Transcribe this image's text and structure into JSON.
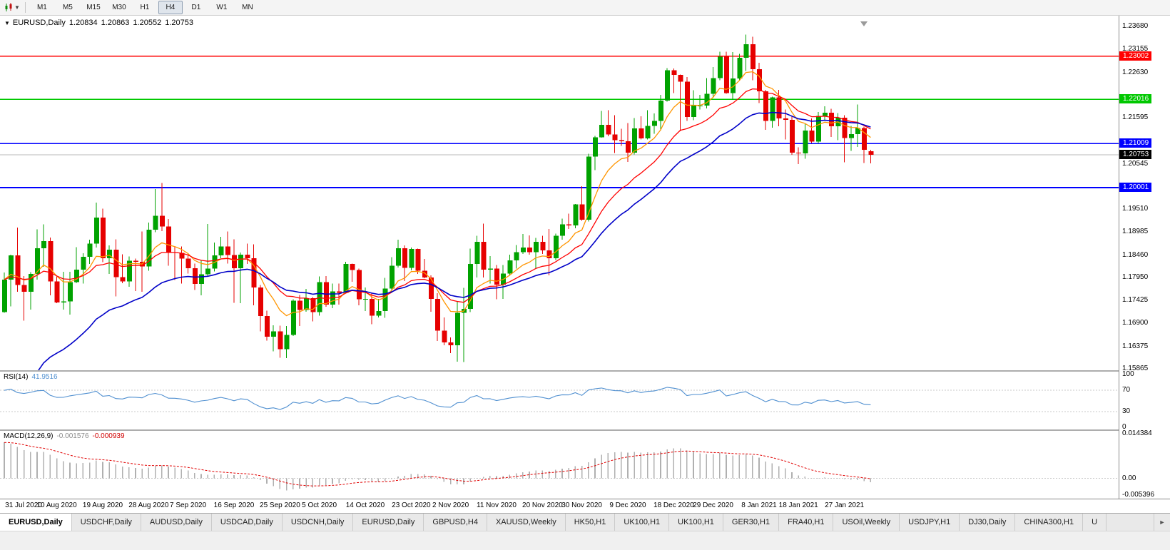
{
  "toolbar": {
    "timeframes": [
      "M1",
      "M5",
      "M15",
      "M30",
      "H1",
      "H4",
      "D1",
      "W1",
      "MN"
    ],
    "active_timeframe": "H4"
  },
  "chart_header": {
    "marker_icon": "▼",
    "symbol": "EURUSD,Daily",
    "open": "1.20834",
    "high": "1.20863",
    "low": "1.20552",
    "close": "1.20753"
  },
  "chart_data": {
    "type": "candlestick",
    "title": "EURUSD,Daily",
    "symbol": "EURUSD",
    "timeframe": "Daily",
    "ylim": [
      1.1583,
      1.2392
    ],
    "up_color": "#00a200",
    "down_color": "#e60000",
    "y_ticks": [
      "1.23680",
      "1.23155",
      "1.22630",
      "1.21595",
      "1.20545",
      "1.19510",
      "1.18985",
      "1.18460",
      "1.17950",
      "1.17425",
      "1.16900",
      "1.16375",
      "1.15865"
    ],
    "x_ticks": [
      {
        "label": "31 Jul 2020",
        "i": 2
      },
      {
        "label": "10 Aug 2020",
        "i": 8
      },
      {
        "label": "19 Aug 2020",
        "i": 15
      },
      {
        "label": "28 Aug 2020",
        "i": 22
      },
      {
        "label": "7 Sep 2020",
        "i": 28
      },
      {
        "label": "16 Sep 2020",
        "i": 35
      },
      {
        "label": "25 Sep 2020",
        "i": 42
      },
      {
        "label": "5 Oct 2020",
        "i": 48
      },
      {
        "label": "14 Oct 2020",
        "i": 55
      },
      {
        "label": "23 Oct 2020",
        "i": 62
      },
      {
        "label": "2 Nov 2020",
        "i": 68
      },
      {
        "label": "11 Nov 2020",
        "i": 75
      },
      {
        "label": "20 Nov 2020",
        "i": 82
      },
      {
        "label": "30 Nov 2020",
        "i": 88
      },
      {
        "label": "9 Dec 2020",
        "i": 95
      },
      {
        "label": "18 Dec 2020",
        "i": 102
      },
      {
        "label": "29 Dec 2020",
        "i": 108
      },
      {
        "label": "8 Jan 2021",
        "i": 115
      },
      {
        "label": "18 Jan 2021",
        "i": 121
      },
      {
        "label": "27 Jan 2021",
        "i": 128
      }
    ],
    "candles": [
      [
        1.1716,
        1.1806,
        1.1714,
        1.179
      ],
      [
        1.179,
        1.1847,
        1.1729,
        1.1845
      ],
      [
        1.1845,
        1.1909,
        1.1762,
        1.1778
      ],
      [
        1.1778,
        1.1798,
        1.1696,
        1.1762
      ],
      [
        1.1762,
        1.1807,
        1.1722,
        1.1803
      ],
      [
        1.1803,
        1.1905,
        1.179,
        1.1862
      ],
      [
        1.1862,
        1.1916,
        1.1819,
        1.1878
      ],
      [
        1.1878,
        1.1886,
        1.1754,
        1.1786
      ],
      [
        1.1786,
        1.1798,
        1.1736,
        1.1738
      ],
      [
        1.1738,
        1.1808,
        1.1722,
        1.174
      ],
      [
        1.174,
        1.1808,
        1.171,
        1.1784
      ],
      [
        1.1784,
        1.1864,
        1.1782,
        1.1813
      ],
      [
        1.1813,
        1.185,
        1.1781,
        1.1842
      ],
      [
        1.1842,
        1.1881,
        1.1826,
        1.1872
      ],
      [
        1.1872,
        1.1966,
        1.1863,
        1.1932
      ],
      [
        1.1932,
        1.1952,
        1.183,
        1.1839
      ],
      [
        1.1839,
        1.1868,
        1.1803,
        1.1858
      ],
      [
        1.1858,
        1.1882,
        1.1752,
        1.1796
      ],
      [
        1.1796,
        1.1848,
        1.1782,
        1.1786
      ],
      [
        1.1786,
        1.1843,
        1.1774,
        1.1833
      ],
      [
        1.1833,
        1.1838,
        1.1764,
        1.1831
      ],
      [
        1.1831,
        1.19,
        1.1762,
        1.182
      ],
      [
        1.182,
        1.192,
        1.181,
        1.1904
      ],
      [
        1.1904,
        1.1997,
        1.1898,
        1.1936
      ],
      [
        1.1936,
        1.2011,
        1.1901,
        1.1911
      ],
      [
        1.1911,
        1.1928,
        1.1822,
        1.1853
      ],
      [
        1.1853,
        1.1865,
        1.1789,
        1.1851
      ],
      [
        1.1851,
        1.1866,
        1.1781,
        1.1838
      ],
      [
        1.1838,
        1.1848,
        1.1804,
        1.1816
      ],
      [
        1.1816,
        1.1827,
        1.1766,
        1.178
      ],
      [
        1.178,
        1.1834,
        1.1754,
        1.1802
      ],
      [
        1.1802,
        1.1917,
        1.1799,
        1.1815
      ],
      [
        1.1815,
        1.1875,
        1.1809,
        1.1845
      ],
      [
        1.1845,
        1.1888,
        1.1839,
        1.1866
      ],
      [
        1.1866,
        1.19,
        1.1827,
        1.1846
      ],
      [
        1.1846,
        1.1882,
        1.1737,
        1.1816
      ],
      [
        1.1816,
        1.1852,
        1.1736,
        1.1847
      ],
      [
        1.1847,
        1.1872,
        1.1826,
        1.1839
      ],
      [
        1.1839,
        1.1871,
        1.1731,
        1.1772
      ],
      [
        1.1772,
        1.1778,
        1.1672,
        1.1707
      ],
      [
        1.1707,
        1.1719,
        1.1651,
        1.166
      ],
      [
        1.166,
        1.1686,
        1.1626,
        1.1672
      ],
      [
        1.1672,
        1.1685,
        1.1612,
        1.1631
      ],
      [
        1.1631,
        1.1684,
        1.1611,
        1.1664
      ],
      [
        1.1664,
        1.1745,
        1.1661,
        1.1742
      ],
      [
        1.1742,
        1.1755,
        1.1684,
        1.1721
      ],
      [
        1.1721,
        1.1769,
        1.1717,
        1.1748
      ],
      [
        1.1748,
        1.175,
        1.1695,
        1.1716
      ],
      [
        1.1716,
        1.1797,
        1.1708,
        1.1784
      ],
      [
        1.1784,
        1.1798,
        1.1728,
        1.1733
      ],
      [
        1.1733,
        1.1781,
        1.1725,
        1.1763
      ],
      [
        1.1763,
        1.1781,
        1.1733,
        1.176
      ],
      [
        1.176,
        1.1831,
        1.1758,
        1.1826
      ],
      [
        1.1826,
        1.1827,
        1.1785,
        1.1812
      ],
      [
        1.1812,
        1.1815,
        1.1731,
        1.1745
      ],
      [
        1.1745,
        1.1772,
        1.1718,
        1.1746
      ],
      [
        1.1746,
        1.1758,
        1.1688,
        1.1708
      ],
      [
        1.1708,
        1.1746,
        1.1704,
        1.1718
      ],
      [
        1.1718,
        1.1794,
        1.1703,
        1.177
      ],
      [
        1.177,
        1.1841,
        1.176,
        1.1822
      ],
      [
        1.1822,
        1.1881,
        1.1818,
        1.1862
      ],
      [
        1.1862,
        1.1868,
        1.1787,
        1.1817
      ],
      [
        1.1817,
        1.1863,
        1.1811,
        1.186
      ],
      [
        1.186,
        1.1861,
        1.1803,
        1.181
      ],
      [
        1.181,
        1.1837,
        1.1793,
        1.1795
      ],
      [
        1.1795,
        1.18,
        1.1717,
        1.1746
      ],
      [
        1.1746,
        1.1759,
        1.165,
        1.1674
      ],
      [
        1.1674,
        1.1704,
        1.164,
        1.1647
      ],
      [
        1.1647,
        1.1658,
        1.1622,
        1.164
      ],
      [
        1.164,
        1.174,
        1.1603,
        1.1714
      ],
      [
        1.1714,
        1.1771,
        1.1602,
        1.1723
      ],
      [
        1.1723,
        1.1861,
        1.1716,
        1.1826
      ],
      [
        1.1826,
        1.189,
        1.1795,
        1.1876
      ],
      [
        1.1876,
        1.1918,
        1.1795,
        1.1813
      ],
      [
        1.1813,
        1.1844,
        1.1781,
        1.1815
      ],
      [
        1.1815,
        1.1823,
        1.1745,
        1.1779
      ],
      [
        1.1779,
        1.1823,
        1.1746,
        1.1804
      ],
      [
        1.1804,
        1.1847,
        1.1799,
        1.1834
      ],
      [
        1.1834,
        1.1869,
        1.1815,
        1.1853
      ],
      [
        1.1853,
        1.1894,
        1.1849,
        1.1863
      ],
      [
        1.1863,
        1.1891,
        1.1847,
        1.1853
      ],
      [
        1.1853,
        1.1885,
        1.1815,
        1.1876
      ],
      [
        1.1876,
        1.189,
        1.1849,
        1.1857
      ],
      [
        1.1857,
        1.1906,
        1.18,
        1.1839
      ],
      [
        1.1839,
        1.1895,
        1.1835,
        1.189
      ],
      [
        1.189,
        1.1929,
        1.1881,
        1.1916
      ],
      [
        1.1916,
        1.1941,
        1.1906,
        1.1914
      ],
      [
        1.1914,
        1.1963,
        1.1907,
        1.1962
      ],
      [
        1.1962,
        1.2003,
        1.1924,
        1.1927
      ],
      [
        1.1927,
        1.2077,
        1.1923,
        1.2071
      ],
      [
        1.2071,
        1.2118,
        1.204,
        1.2115
      ],
      [
        1.2115,
        1.2175,
        1.2114,
        1.2143
      ],
      [
        1.2143,
        1.2177,
        1.2117,
        1.2121
      ],
      [
        1.2121,
        1.2165,
        1.2079,
        1.2108
      ],
      [
        1.2108,
        1.2134,
        1.2095,
        1.2106
      ],
      [
        1.2106,
        1.2147,
        1.2059,
        1.208
      ],
      [
        1.208,
        1.2159,
        1.2076,
        1.2135
      ],
      [
        1.2135,
        1.2163,
        1.211,
        1.2112
      ],
      [
        1.2112,
        1.2177,
        1.211,
        1.2141
      ],
      [
        1.2141,
        1.2169,
        1.2123,
        1.2152
      ],
      [
        1.2152,
        1.2212,
        1.213,
        1.2199
      ],
      [
        1.2199,
        1.2273,
        1.2196,
        1.2268
      ],
      [
        1.2268,
        1.2272,
        1.2216,
        1.2257
      ],
      [
        1.2257,
        1.2258,
        1.2129,
        1.2242
      ],
      [
        1.2242,
        1.2252,
        1.2152,
        1.2161
      ],
      [
        1.2161,
        1.2222,
        1.2154,
        1.2187
      ],
      [
        1.2187,
        1.2212,
        1.2178,
        1.2187
      ],
      [
        1.2187,
        1.225,
        1.2181,
        1.2214
      ],
      [
        1.2214,
        1.2275,
        1.2208,
        1.225
      ],
      [
        1.225,
        1.231,
        1.2245,
        1.2299
      ],
      [
        1.2299,
        1.231,
        1.2214,
        1.2216
      ],
      [
        1.2216,
        1.2309,
        1.22,
        1.2249
      ],
      [
        1.2249,
        1.2305,
        1.2244,
        1.2296
      ],
      [
        1.2296,
        1.2349,
        1.2266,
        1.2327
      ],
      [
        1.2327,
        1.2344,
        1.2245,
        1.227
      ],
      [
        1.227,
        1.2285,
        1.2193,
        1.222
      ],
      [
        1.222,
        1.2223,
        1.2132,
        1.2152
      ],
      [
        1.2152,
        1.2208,
        1.2137,
        1.2206
      ],
      [
        1.2206,
        1.2223,
        1.214,
        1.2158
      ],
      [
        1.2158,
        1.2178,
        1.211,
        1.2155
      ],
      [
        1.2155,
        1.2163,
        1.2075,
        1.208
      ],
      [
        1.208,
        1.2092,
        1.2054,
        1.2078
      ],
      [
        1.2078,
        1.2145,
        1.2066,
        1.213
      ],
      [
        1.213,
        1.2158,
        1.2102,
        1.2105
      ],
      [
        1.2105,
        1.2173,
        1.2101,
        1.2164
      ],
      [
        1.2164,
        1.2186,
        1.2152,
        1.2171
      ],
      [
        1.2171,
        1.218,
        1.2116,
        1.214
      ],
      [
        1.214,
        1.217,
        1.2108,
        1.216
      ],
      [
        1.216,
        1.2165,
        1.2058,
        1.2113
      ],
      [
        1.2113,
        1.2141,
        1.2084,
        1.2122
      ],
      [
        1.2122,
        1.219,
        1.2093,
        1.2136
      ],
      [
        1.2136,
        1.2139,
        1.2056,
        1.2086
      ],
      [
        1.20834,
        1.20863,
        1.20552,
        1.20753
      ]
    ],
    "overlays": {
      "hlines": [
        {
          "price": 1.23002,
          "label": "1.23002",
          "color": "#ff0000"
        },
        {
          "price": 1.22016,
          "label": "1.22016",
          "color": "#00c800"
        },
        {
          "price": 1.21009,
          "label": "1.21009",
          "color": "#0000ff"
        },
        {
          "price": 1.20001,
          "label": "1.20001",
          "color": "#0000ff"
        }
      ],
      "bid_line": {
        "price": 1.20753,
        "label": "1.20753",
        "color": "#b8b8b8",
        "label_bg": "#000000"
      },
      "moving_averages": [
        {
          "period": 8,
          "color": "#ff9500",
          "width": 1.3
        },
        {
          "period": 16,
          "color": "#ff0000",
          "width": 1.3
        },
        {
          "period": 27,
          "color": "#0000c8",
          "width": 1.6,
          "seed": 1.145
        }
      ]
    },
    "indicators": [
      {
        "name": "RSI",
        "display": "RSI(14)",
        "period": 14,
        "value_display": "41.9516",
        "range": [
          0,
          100
        ],
        "levels": [
          70,
          30
        ],
        "y_ticks": [
          "100",
          "70",
          "30",
          "0"
        ],
        "color": "#4f8fd0"
      },
      {
        "name": "MACD",
        "display": "MACD(12,26,9)",
        "fast": 12,
        "slow": 26,
        "signal": 9,
        "main_value_display": "-0.001576",
        "signal_value_display": "-0.000939",
        "range": [
          -0.005396,
          0.014384
        ],
        "y_ticks": [
          "0.014384",
          "0.00",
          "-0.005396"
        ],
        "histogram_color": "#b0b0b0",
        "signal_color": "#e00000"
      }
    ]
  },
  "tabbar": {
    "tabs": [
      "EURUSD,Daily",
      "USDCHF,Daily",
      "AUDUSD,Daily",
      "USDCAD,Daily",
      "USDCNH,Daily",
      "EURUSD,Daily",
      "GBPUSD,H4",
      "XAUUSD,Weekly",
      "HK50,H1",
      "UK100,H1",
      "UK100,H1",
      "GER30,H1",
      "FRA40,H1",
      "USOil,Weekly",
      "USDJPY,H1",
      "DJ30,Daily",
      "CHINA300,H1",
      "U"
    ],
    "active_index": 0,
    "scroll_right_icon": "►"
  }
}
